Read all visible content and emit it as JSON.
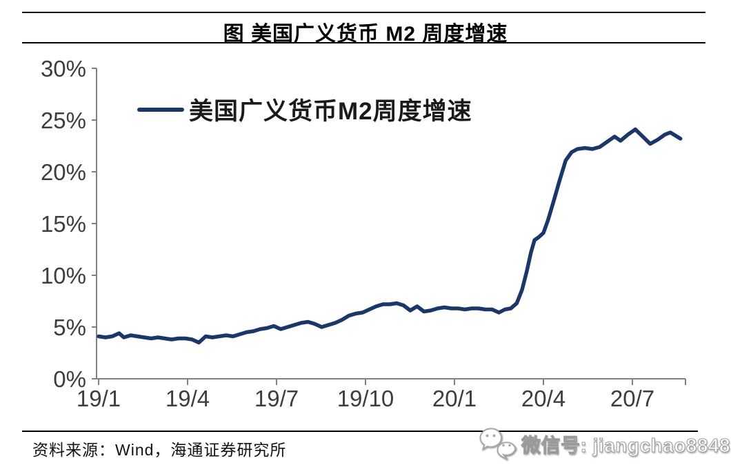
{
  "header": {
    "title": "图  美国广义货币 M2 周度增速"
  },
  "chart_data": {
    "type": "line",
    "title": "图  美国广义货币 M2 周度增速",
    "xlabel": "",
    "ylabel": "",
    "ylim": [
      0,
      30
    ],
    "grid": false,
    "legend_position": "top-left-inside",
    "axis_color": "#808080",
    "tick_label_color": "#3d3d3d",
    "legend": [
      {
        "name": "美国广义货币M2周度增速",
        "color": "#1b3768"
      }
    ],
    "y_ticks": [
      {
        "value": 0,
        "label": "0%"
      },
      {
        "value": 5,
        "label": "5%"
      },
      {
        "value": 10,
        "label": "10%"
      },
      {
        "value": 15,
        "label": "15%"
      },
      {
        "value": 20,
        "label": "20%"
      },
      {
        "value": 25,
        "label": "25%"
      },
      {
        "value": 30,
        "label": "30%"
      }
    ],
    "x_ticks": [
      {
        "month": 0,
        "label": "19/1"
      },
      {
        "month": 3,
        "label": "19/4"
      },
      {
        "month": 6,
        "label": "19/7"
      },
      {
        "month": 9,
        "label": "19/10"
      },
      {
        "month": 12,
        "label": "20/1"
      },
      {
        "month": 15,
        "label": "20/4"
      },
      {
        "month": 18,
        "label": "20/7"
      }
    ],
    "series": [
      {
        "name": "美国广义货币M2周度增速",
        "color": "#1b3768",
        "unit": "%",
        "x_unit": "months_since_2019_01",
        "points": [
          [
            0.0,
            4.1
          ],
          [
            0.23,
            4.0
          ],
          [
            0.46,
            4.1
          ],
          [
            0.69,
            4.4
          ],
          [
            0.85,
            4.0
          ],
          [
            1.08,
            4.2
          ],
          [
            1.31,
            4.1
          ],
          [
            1.54,
            4.0
          ],
          [
            1.77,
            3.9
          ],
          [
            2.0,
            4.0
          ],
          [
            2.23,
            3.9
          ],
          [
            2.46,
            3.8
          ],
          [
            2.69,
            3.9
          ],
          [
            2.92,
            3.9
          ],
          [
            3.15,
            3.8
          ],
          [
            3.38,
            3.5
          ],
          [
            3.61,
            4.1
          ],
          [
            3.84,
            4.0
          ],
          [
            4.07,
            4.1
          ],
          [
            4.3,
            4.2
          ],
          [
            4.53,
            4.1
          ],
          [
            4.76,
            4.3
          ],
          [
            4.99,
            4.5
          ],
          [
            5.22,
            4.6
          ],
          [
            5.45,
            4.8
          ],
          [
            5.68,
            4.9
          ],
          [
            5.91,
            5.1
          ],
          [
            6.14,
            4.8
          ],
          [
            6.37,
            5.0
          ],
          [
            6.6,
            5.2
          ],
          [
            6.83,
            5.4
          ],
          [
            7.06,
            5.5
          ],
          [
            7.29,
            5.3
          ],
          [
            7.52,
            5.0
          ],
          [
            7.75,
            5.2
          ],
          [
            7.98,
            5.4
          ],
          [
            8.21,
            5.7
          ],
          [
            8.44,
            6.1
          ],
          [
            8.67,
            6.3
          ],
          [
            8.9,
            6.4
          ],
          [
            9.13,
            6.7
          ],
          [
            9.36,
            7.0
          ],
          [
            9.59,
            7.2
          ],
          [
            9.82,
            7.2
          ],
          [
            10.05,
            7.3
          ],
          [
            10.28,
            7.1
          ],
          [
            10.51,
            6.6
          ],
          [
            10.74,
            7.0
          ],
          [
            10.97,
            6.5
          ],
          [
            11.2,
            6.6
          ],
          [
            11.43,
            6.8
          ],
          [
            11.66,
            6.9
          ],
          [
            11.89,
            6.8
          ],
          [
            12.12,
            6.8
          ],
          [
            12.35,
            6.7
          ],
          [
            12.58,
            6.8
          ],
          [
            12.81,
            6.8
          ],
          [
            13.04,
            6.7
          ],
          [
            13.27,
            6.7
          ],
          [
            13.5,
            6.4
          ],
          [
            13.7,
            6.7
          ],
          [
            13.9,
            6.8
          ],
          [
            14.1,
            7.3
          ],
          [
            14.28,
            8.6
          ],
          [
            14.44,
            10.4
          ],
          [
            14.58,
            12.2
          ],
          [
            14.7,
            13.4
          ],
          [
            14.85,
            13.7
          ],
          [
            15.0,
            14.1
          ],
          [
            15.15,
            15.3
          ],
          [
            15.35,
            17.2
          ],
          [
            15.55,
            19.2
          ],
          [
            15.75,
            21.1
          ],
          [
            15.95,
            21.9
          ],
          [
            16.15,
            22.2
          ],
          [
            16.4,
            22.3
          ],
          [
            16.65,
            22.2
          ],
          [
            16.9,
            22.4
          ],
          [
            17.15,
            22.9
          ],
          [
            17.4,
            23.4
          ],
          [
            17.6,
            23.0
          ],
          [
            17.85,
            23.6
          ],
          [
            18.1,
            24.1
          ],
          [
            18.35,
            23.4
          ],
          [
            18.6,
            22.7
          ],
          [
            18.85,
            23.1
          ],
          [
            19.1,
            23.6
          ],
          [
            19.28,
            23.8
          ],
          [
            19.45,
            23.5
          ],
          [
            19.62,
            23.2
          ]
        ]
      }
    ]
  },
  "footer": {
    "source": "资料来源：Wind，海通证券研究所",
    "watermark": {
      "icon": "wechat-icon",
      "text": "微信号: jiangchao8848"
    }
  }
}
